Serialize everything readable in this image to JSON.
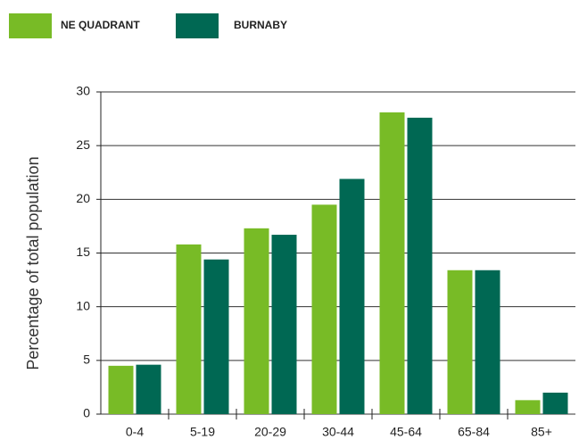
{
  "chart_data": {
    "type": "bar",
    "categories": [
      "0-4",
      "5-19",
      "20-29",
      "30-44",
      "45-64",
      "65-84",
      "85+"
    ],
    "series": [
      {
        "name": "NE QUADRANT",
        "color": "#78bb26",
        "values": [
          4.5,
          15.8,
          17.3,
          19.5,
          28.1,
          13.4,
          1.3
        ]
      },
      {
        "name": "BURNABY",
        "color": "#006853",
        "values": [
          4.6,
          14.4,
          16.7,
          21.9,
          27.6,
          13.4,
          2.0
        ]
      }
    ],
    "ylabel": "Percentage of total population",
    "ylim": [
      0,
      30
    ],
    "yticks": [
      0,
      5,
      10,
      15,
      20,
      25,
      30
    ],
    "grid": true,
    "legend": "top-left"
  }
}
